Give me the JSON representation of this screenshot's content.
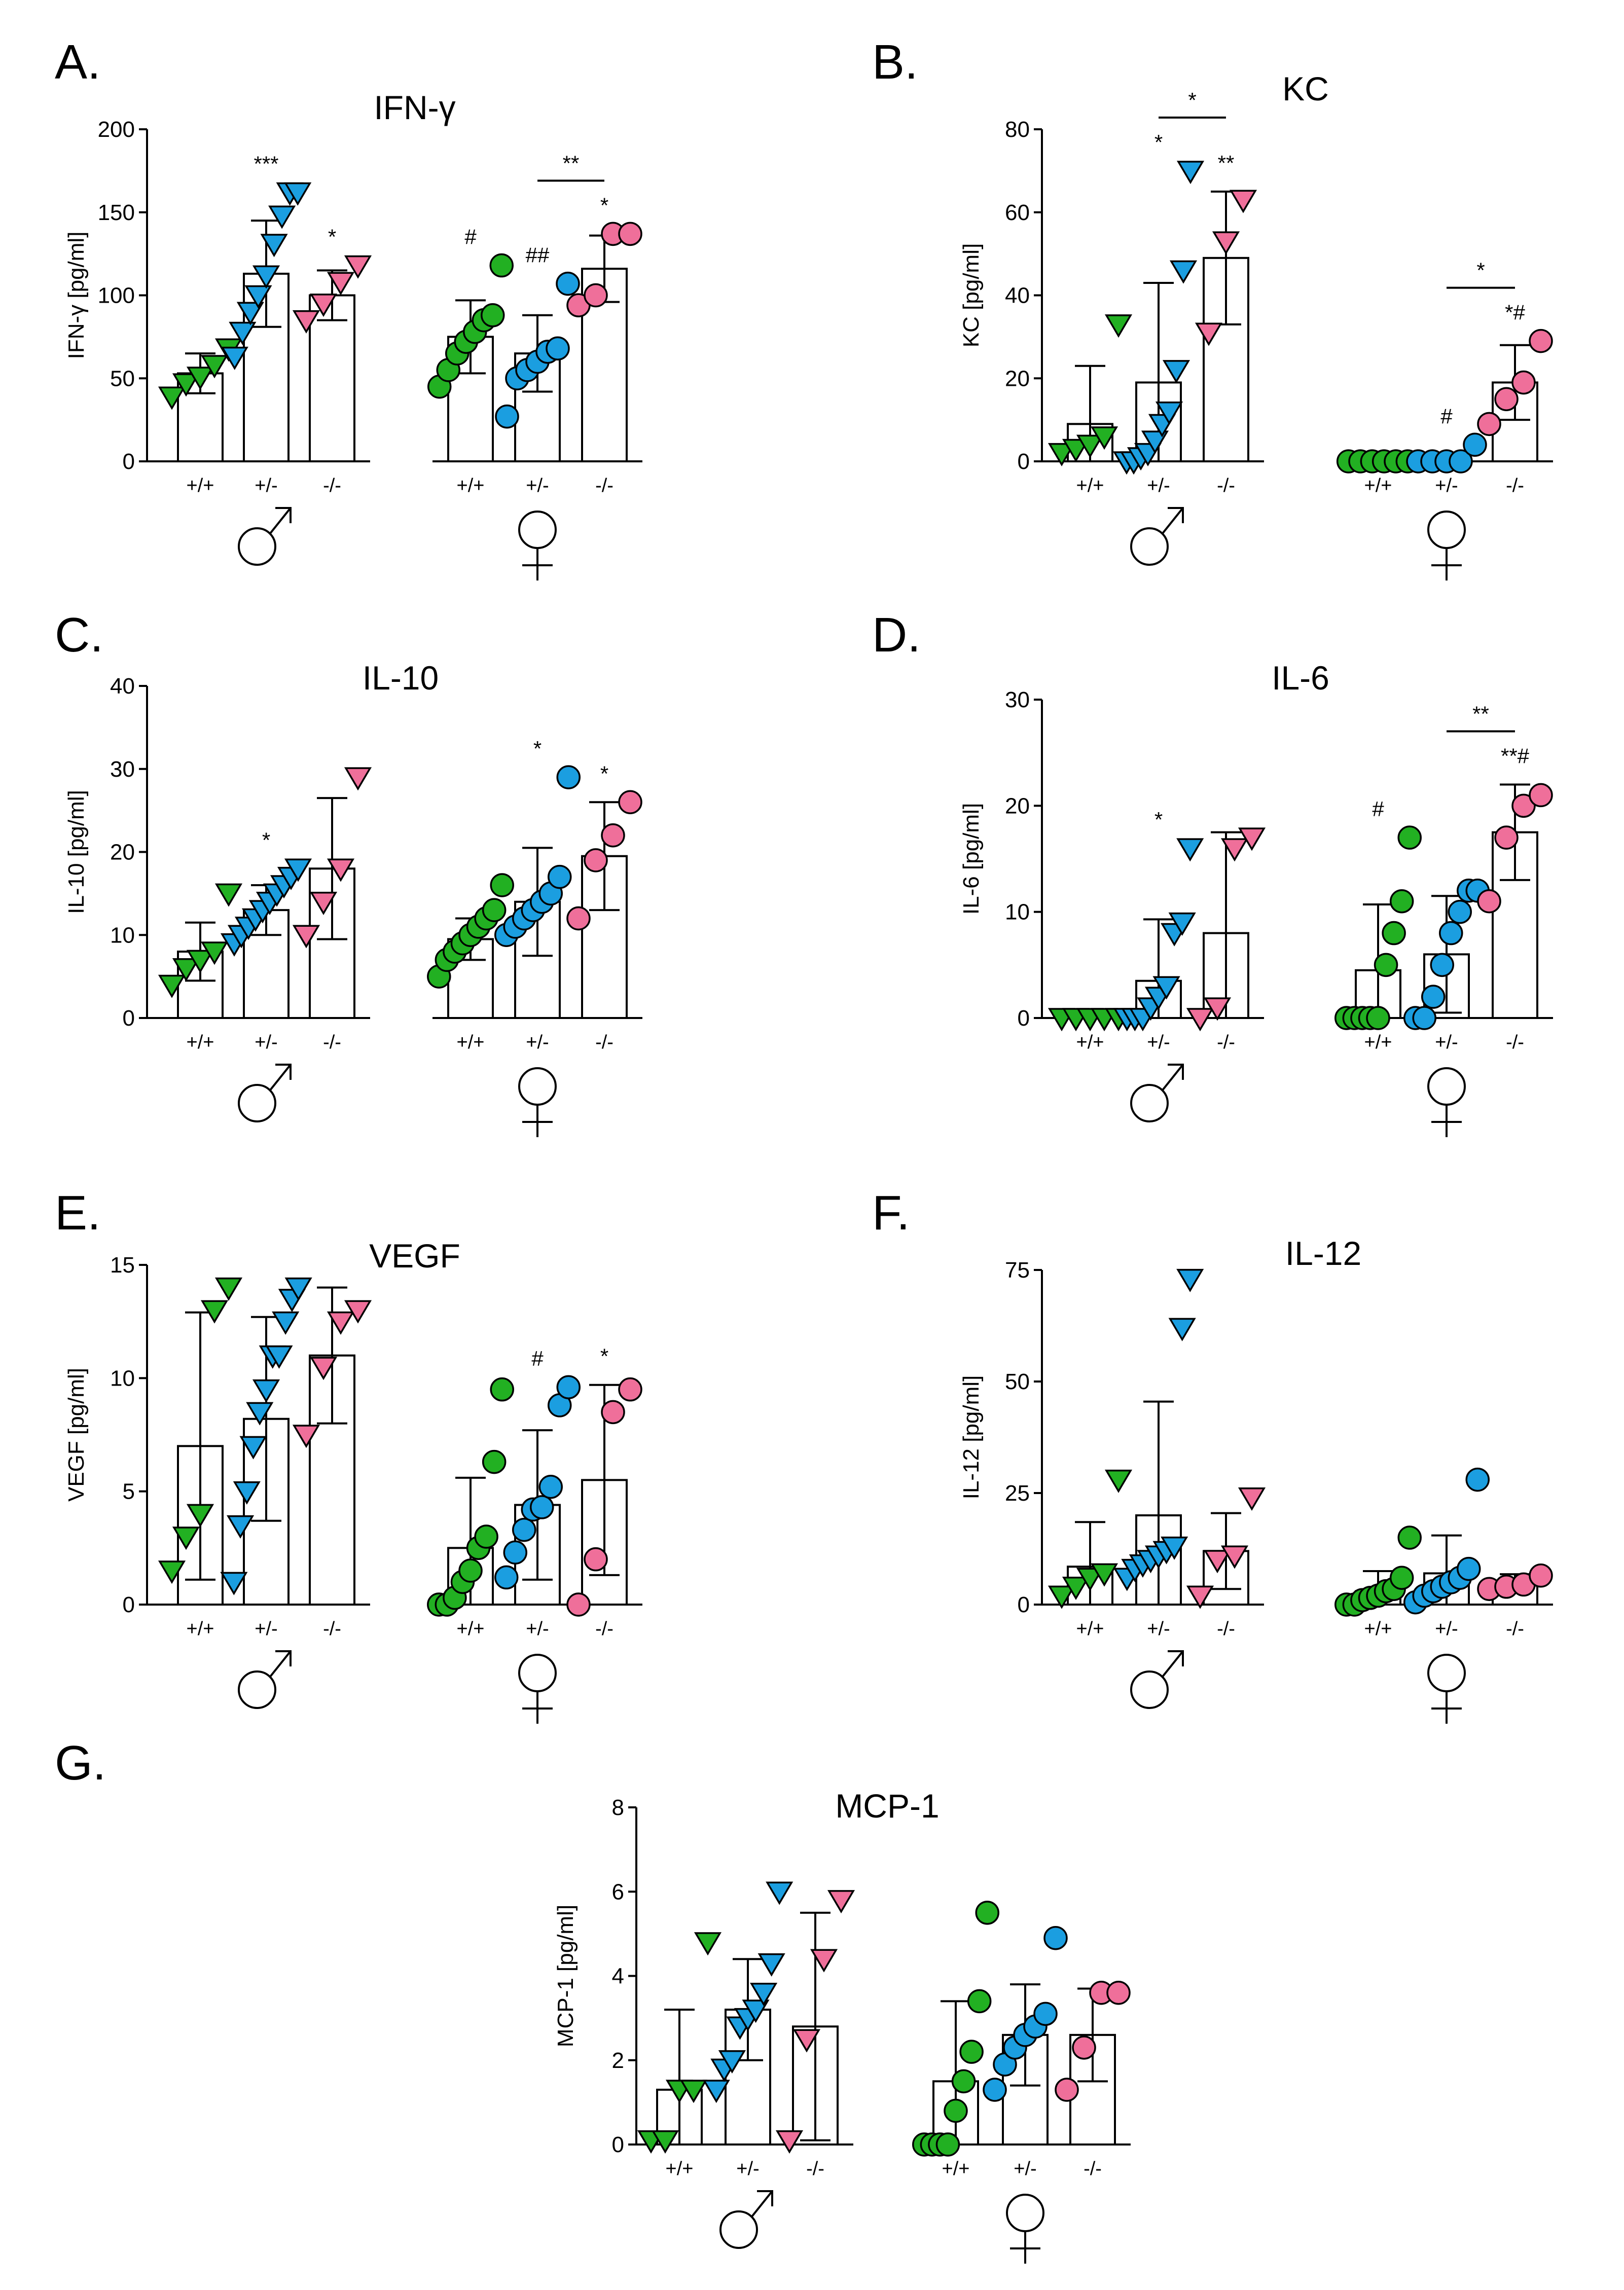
{
  "colors": {
    "wt": "#22b022",
    "het": "#1b9ee0",
    "ko": "#ef6f9a",
    "outline": "#000000",
    "bar_fill": "#ffffff"
  },
  "genotypes": [
    "+/+",
    "+/-",
    "-/-"
  ],
  "sex_symbols": {
    "male": "♂",
    "female": "♀"
  },
  "chart_data": [
    {
      "type": "bar",
      "panel": "A.",
      "title": "IFN-γ",
      "ylabel": "IFN-γ [pg/ml]",
      "ylim": [
        0,
        200
      ],
      "yticks": [
        "0",
        "50",
        "100",
        "150",
        "200"
      ],
      "groups": [
        {
          "sex": "male",
          "genotype": "+/+",
          "mean": 53,
          "sd": 12,
          "points": [
            39,
            47,
            51,
            58,
            68
          ],
          "annotation": ""
        },
        {
          "sex": "male",
          "genotype": "+/-",
          "mean": 113,
          "sd": 32,
          "points": [
            63,
            78,
            90,
            100,
            112,
            131,
            148,
            162,
            162
          ],
          "annotation": "***"
        },
        {
          "sex": "male",
          "genotype": "-/-",
          "mean": 100,
          "sd": 15,
          "points": [
            85,
            95,
            108,
            118
          ],
          "annotation": "*"
        },
        {
          "sex": "female",
          "genotype": "+/+",
          "mean": 75,
          "sd": 22,
          "points": [
            45,
            55,
            65,
            72,
            78,
            85,
            88,
            118
          ],
          "annotation": "#"
        },
        {
          "sex": "female",
          "genotype": "+/-",
          "mean": 65,
          "sd": 23,
          "points": [
            27,
            50,
            55,
            60,
            66,
            68,
            107
          ],
          "annotation": "##"
        },
        {
          "sex": "female",
          "genotype": "-/-",
          "mean": 116,
          "sd": 20,
          "points": [
            94,
            100,
            137,
            137
          ],
          "annotation": "*"
        }
      ],
      "brackets": [
        {
          "from": 4,
          "to": 5,
          "label": "**"
        }
      ]
    },
    {
      "type": "bar",
      "panel": "B.",
      "title": "KC",
      "ylabel": "KC [pg/ml]",
      "ylim": [
        0,
        80
      ],
      "yticks": [
        "0",
        "20",
        "40",
        "60",
        "80"
      ],
      "groups": [
        {
          "sex": "male",
          "genotype": "+/+",
          "mean": 9,
          "sd": 14,
          "points": [
            2,
            3,
            4,
            6,
            33
          ],
          "annotation": ""
        },
        {
          "sex": "male",
          "genotype": "+/-",
          "mean": 19,
          "sd": 24,
          "points": [
            0,
            0,
            1,
            2,
            5,
            9,
            12,
            22,
            46,
            70
          ],
          "annotation": "*"
        },
        {
          "sex": "male",
          "genotype": "-/-",
          "mean": 49,
          "sd": 16,
          "points": [
            31,
            53,
            63
          ],
          "annotation": "**"
        },
        {
          "sex": "female",
          "genotype": "+/+",
          "mean": 0,
          "sd": 0,
          "points": [
            0,
            0,
            0,
            0,
            0,
            0
          ],
          "annotation": ""
        },
        {
          "sex": "female",
          "genotype": "+/-",
          "mean": 0.8,
          "sd": 1.2,
          "points": [
            0,
            0,
            0,
            0,
            4
          ],
          "annotation": "#"
        },
        {
          "sex": "female",
          "genotype": "-/-",
          "mean": 19,
          "sd": 9,
          "points": [
            9,
            15,
            19,
            29
          ],
          "annotation": "*#"
        }
      ],
      "brackets": [
        {
          "from": 1,
          "to": 2,
          "label": "*"
        },
        {
          "from": 4,
          "to": 5,
          "label": "*"
        }
      ]
    },
    {
      "type": "bar",
      "panel": "C.",
      "title": "IL-10",
      "ylabel": "IL-10 [pg/ml]",
      "ylim": [
        0,
        40
      ],
      "yticks": [
        "0",
        "10",
        "20",
        "30",
        "40"
      ],
      "groups": [
        {
          "sex": "male",
          "genotype": "+/+",
          "mean": 8,
          "sd": 3.5,
          "points": [
            4,
            6,
            7,
            8,
            15
          ],
          "annotation": ""
        },
        {
          "sex": "male",
          "genotype": "+/-",
          "mean": 13,
          "sd": 3,
          "points": [
            9,
            10,
            11,
            12,
            13,
            14,
            15,
            16,
            17,
            18
          ],
          "annotation": "*"
        },
        {
          "sex": "male",
          "genotype": "-/-",
          "mean": 18,
          "sd": 8.5,
          "points": [
            10,
            14,
            18,
            29
          ],
          "annotation": ""
        },
        {
          "sex": "female",
          "genotype": "+/+",
          "mean": 9.5,
          "sd": 2.5,
          "points": [
            5,
            7,
            8,
            9,
            10,
            11,
            12,
            13,
            16
          ],
          "annotation": ""
        },
        {
          "sex": "female",
          "genotype": "+/-",
          "mean": 14,
          "sd": 6.5,
          "points": [
            10,
            11,
            12,
            13,
            14,
            15,
            17,
            29
          ],
          "annotation": "*"
        },
        {
          "sex": "female",
          "genotype": "-/-",
          "mean": 19.5,
          "sd": 6.5,
          "points": [
            12,
            19,
            22,
            26
          ],
          "annotation": "*"
        }
      ],
      "brackets": []
    },
    {
      "type": "bar",
      "panel": "D.",
      "title": "IL-6",
      "ylabel": "IL-6 [pg/ml]",
      "ylim": [
        0,
        30
      ],
      "yticks": [
        "0",
        "10",
        "20",
        "30"
      ],
      "groups": [
        {
          "sex": "male",
          "genotype": "+/+",
          "mean": 0,
          "sd": 0,
          "points": [
            0,
            0,
            0,
            0,
            0
          ],
          "annotation": ""
        },
        {
          "sex": "male",
          "genotype": "+/-",
          "mean": 3.5,
          "sd": 5.8,
          "points": [
            0,
            0,
            0,
            1,
            2,
            3,
            8,
            9,
            16
          ],
          "annotation": "*"
        },
        {
          "sex": "male",
          "genotype": "-/-",
          "mean": 8,
          "sd": 9.5,
          "points": [
            0,
            1,
            16,
            17
          ],
          "annotation": ""
        },
        {
          "sex": "female",
          "genotype": "+/+",
          "mean": 4.5,
          "sd": 6.2,
          "points": [
            0,
            0,
            0,
            0,
            0,
            5,
            8,
            11,
            17
          ],
          "annotation": "#"
        },
        {
          "sex": "female",
          "genotype": "+/-",
          "mean": 6,
          "sd": 5.5,
          "points": [
            0,
            0,
            2,
            5,
            8,
            10,
            12,
            12
          ],
          "annotation": ""
        },
        {
          "sex": "female",
          "genotype": "-/-",
          "mean": 17.5,
          "sd": 4.5,
          "points": [
            11,
            17,
            20,
            21
          ],
          "annotation": "**#"
        }
      ],
      "brackets": [
        {
          "from": 4,
          "to": 5,
          "label": "**"
        }
      ]
    },
    {
      "type": "bar",
      "panel": "E.",
      "title": "VEGF",
      "ylabel": "VEGF [pg/ml]",
      "ylim": [
        0,
        15
      ],
      "yticks": [
        "0",
        "5",
        "10",
        "15"
      ],
      "groups": [
        {
          "sex": "male",
          "genotype": "+/+",
          "mean": 7,
          "sd": 5.9,
          "points": [
            1.5,
            3,
            4,
            13,
            14
          ],
          "annotation": ""
        },
        {
          "sex": "male",
          "genotype": "+/-",
          "mean": 8.2,
          "sd": 4.5,
          "points": [
            1,
            3.5,
            5,
            7,
            8.5,
            9.5,
            11,
            11,
            12.5,
            13.5,
            14
          ],
          "annotation": ""
        },
        {
          "sex": "male",
          "genotype": "-/-",
          "mean": 11,
          "sd": 3,
          "points": [
            7.5,
            10.5,
            12.5,
            13
          ],
          "annotation": ""
        },
        {
          "sex": "female",
          "genotype": "+/+",
          "mean": 2.5,
          "sd": 3.1,
          "points": [
            0,
            0,
            0.3,
            1,
            1.5,
            2.5,
            3,
            6.3,
            9.5
          ],
          "annotation": ""
        },
        {
          "sex": "female",
          "genotype": "+/-",
          "mean": 4.4,
          "sd": 3.3,
          "points": [
            1.2,
            2.3,
            3.3,
            4.2,
            4.3,
            5.2,
            8.8,
            9.6
          ],
          "annotation": "#"
        },
        {
          "sex": "female",
          "genotype": "-/-",
          "mean": 5.5,
          "sd": 4.2,
          "points": [
            0,
            2,
            8.5,
            9.5
          ],
          "annotation": "*"
        }
      ],
      "brackets": []
    },
    {
      "type": "bar",
      "panel": "F.",
      "title": "IL-12",
      "ylabel": "IL-12 [pg/ml]",
      "ylim": [
        0,
        75
      ],
      "yticks": [
        "0",
        "25",
        "50",
        "75"
      ],
      "groups": [
        {
          "sex": "male",
          "genotype": "+/+",
          "mean": 8.5,
          "sd": 10,
          "points": [
            2,
            4,
            6,
            7,
            28
          ],
          "annotation": ""
        },
        {
          "sex": "male",
          "genotype": "+/-",
          "mean": 20,
          "sd": 25.5,
          "points": [
            6,
            8,
            9,
            10,
            11,
            12,
            13,
            62,
            73
          ],
          "annotation": ""
        },
        {
          "sex": "male",
          "genotype": "-/-",
          "mean": 12,
          "sd": 8.5,
          "points": [
            2,
            10,
            11,
            24
          ],
          "annotation": ""
        },
        {
          "sex": "female",
          "genotype": "+/+",
          "mean": 3,
          "sd": 4.5,
          "points": [
            0,
            0,
            1,
            1.5,
            2,
            3,
            3.5,
            6,
            15
          ],
          "annotation": ""
        },
        {
          "sex": "female",
          "genotype": "+/-",
          "mean": 7,
          "sd": 8.5,
          "points": [
            0.5,
            2,
            3,
            4,
            5,
            6,
            8,
            28
          ],
          "annotation": ""
        },
        {
          "sex": "female",
          "genotype": "-/-",
          "mean": 5,
          "sd": 1.8,
          "points": [
            3.5,
            4,
            4.5,
            6.5
          ],
          "annotation": ""
        }
      ],
      "brackets": []
    },
    {
      "type": "bar",
      "panel": "G.",
      "title": "MCP-1",
      "ylabel": "MCP-1 [pg/ml]",
      "ylim": [
        0,
        8
      ],
      "yticks": [
        "0",
        "2",
        "4",
        "6",
        "8"
      ],
      "groups": [
        {
          "sex": "male",
          "genotype": "+/+",
          "mean": 1.3,
          "sd": 1.9,
          "points": [
            0.1,
            0.1,
            1.3,
            1.3,
            4.8
          ],
          "annotation": ""
        },
        {
          "sex": "male",
          "genotype": "+/-",
          "mean": 3.2,
          "sd": 1.2,
          "points": [
            1.3,
            1.8,
            2,
            2.8,
            3,
            3.2,
            3.6,
            4.3,
            6
          ],
          "annotation": ""
        },
        {
          "sex": "male",
          "genotype": "-/-",
          "mean": 2.8,
          "sd": 2.7,
          "points": [
            0.1,
            2.5,
            4.4,
            5.8
          ],
          "annotation": ""
        },
        {
          "sex": "female",
          "genotype": "+/+",
          "mean": 1.5,
          "sd": 1.9,
          "points": [
            0,
            0,
            0,
            0,
            0.8,
            1.5,
            2.2,
            3.4,
            5.5
          ],
          "annotation": ""
        },
        {
          "sex": "female",
          "genotype": "+/-",
          "mean": 2.6,
          "sd": 1.2,
          "points": [
            1.3,
            1.9,
            2.3,
            2.6,
            2.8,
            3.1,
            4.9
          ],
          "annotation": ""
        },
        {
          "sex": "female",
          "genotype": "-/-",
          "mean": 2.6,
          "sd": 1.1,
          "points": [
            1.3,
            2.3,
            3.6,
            3.6
          ],
          "annotation": ""
        }
      ],
      "brackets": []
    }
  ]
}
